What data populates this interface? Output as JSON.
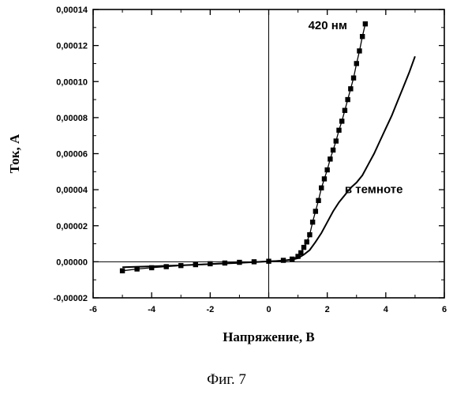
{
  "chart_data": {
    "type": "line",
    "xlabel": "Напряжение, В",
    "ylabel": "Ток, А",
    "xlim": [
      -6,
      6
    ],
    "ylim": [
      -2e-05,
      0.00014
    ],
    "x_ticks": [
      "-6",
      "-4",
      "-2",
      "0",
      "2",
      "4",
      "6"
    ],
    "y_ticks": [
      "-0,00002",
      "0,00000",
      "0,00002",
      "0,00004",
      "0,00006",
      "0,00008",
      "0,00010",
      "0,00012",
      "0,00014"
    ],
    "series": [
      {
        "name": "420 нм",
        "marker": "square",
        "x": [
          -5,
          -4.5,
          -4,
          -3.5,
          -3,
          -2.5,
          -2,
          -1.5,
          -1,
          -0.5,
          0,
          0.5,
          0.8,
          1.0,
          1.1,
          1.2,
          1.3,
          1.4,
          1.5,
          1.6,
          1.7,
          1.8,
          1.9,
          2.0,
          2.1,
          2.2,
          2.3,
          2.4,
          2.5,
          2.6,
          2.7,
          2.8,
          2.9,
          3.0,
          3.1,
          3.2,
          3.3
        ],
        "y": [
          -5e-06,
          -4e-06,
          -3.3e-06,
          -2.7e-06,
          -2.1e-06,
          -1.6e-06,
          -1.1e-06,
          -7e-07,
          -3e-07,
          0.0,
          3e-07,
          8e-07,
          1.5e-06,
          3e-06,
          5e-06,
          8e-06,
          1.1e-05,
          1.5e-05,
          2.2e-05,
          2.8e-05,
          3.4e-05,
          4.1e-05,
          4.6e-05,
          5.1e-05,
          5.7e-05,
          6.2e-05,
          6.7e-05,
          7.3e-05,
          7.8e-05,
          8.4e-05,
          9e-05,
          9.6e-05,
          0.000102,
          0.00011,
          0.000117,
          0.000125,
          0.000132
        ]
      },
      {
        "name": "в темноте",
        "marker": "none",
        "x": [
          -5,
          -4,
          -3,
          -2,
          -1,
          0,
          0.5,
          0.8,
          1.0,
          1.2,
          1.4,
          1.6,
          1.8,
          2.0,
          2.2,
          2.4,
          2.6,
          2.8,
          3.0,
          3.2,
          3.4,
          3.6,
          3.8,
          4.0,
          4.2,
          4.4,
          4.6,
          4.8,
          5.0
        ],
        "y": [
          -3e-06,
          -2.5e-06,
          -2e-06,
          -1.3e-06,
          -6e-07,
          2e-07,
          6e-07,
          1.2e-06,
          2e-06,
          4e-06,
          6.5e-06,
          1.1e-05,
          1.6e-05,
          2.2e-05,
          2.8e-05,
          3.3e-05,
          3.7e-05,
          4.1e-05,
          4.4e-05,
          4.8e-05,
          5.4e-05,
          6e-05,
          6.7e-05,
          7.4e-05,
          8.1e-05,
          8.9e-05,
          9.7e-05,
          0.000105,
          0.000114
        ]
      }
    ],
    "annotations": [
      {
        "text": "420 нм",
        "x": 1.35,
        "y": 0.000129
      },
      {
        "text": "в темноте",
        "x": 2.6,
        "y": 3.8e-05
      }
    ],
    "grid": false,
    "legend": "none"
  },
  "caption": "Фиг. 7"
}
